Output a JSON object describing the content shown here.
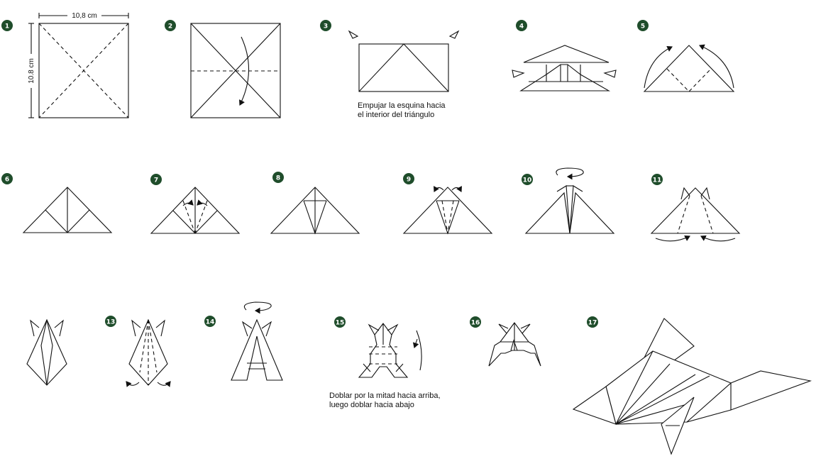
{
  "steps": [
    "1",
    "2",
    "3",
    "4",
    "5",
    "6",
    "7",
    "8",
    "9",
    "10",
    "11",
    "13",
    "14",
    "15",
    "16",
    "17"
  ],
  "dimensions": {
    "width": "10,8 cm",
    "height": "10.8 cm"
  },
  "captions": {
    "step3_line1": "Empujar la esquina hacia",
    "step3_line2": "el interior del triángulo",
    "step15_line1": "Doblar por la mitad hacia arriba,",
    "step15_line2": "luego doblar hacia abajo"
  },
  "colors": {
    "badge": "#1f4d2b",
    "line": "#111111",
    "background": "#ffffff"
  }
}
